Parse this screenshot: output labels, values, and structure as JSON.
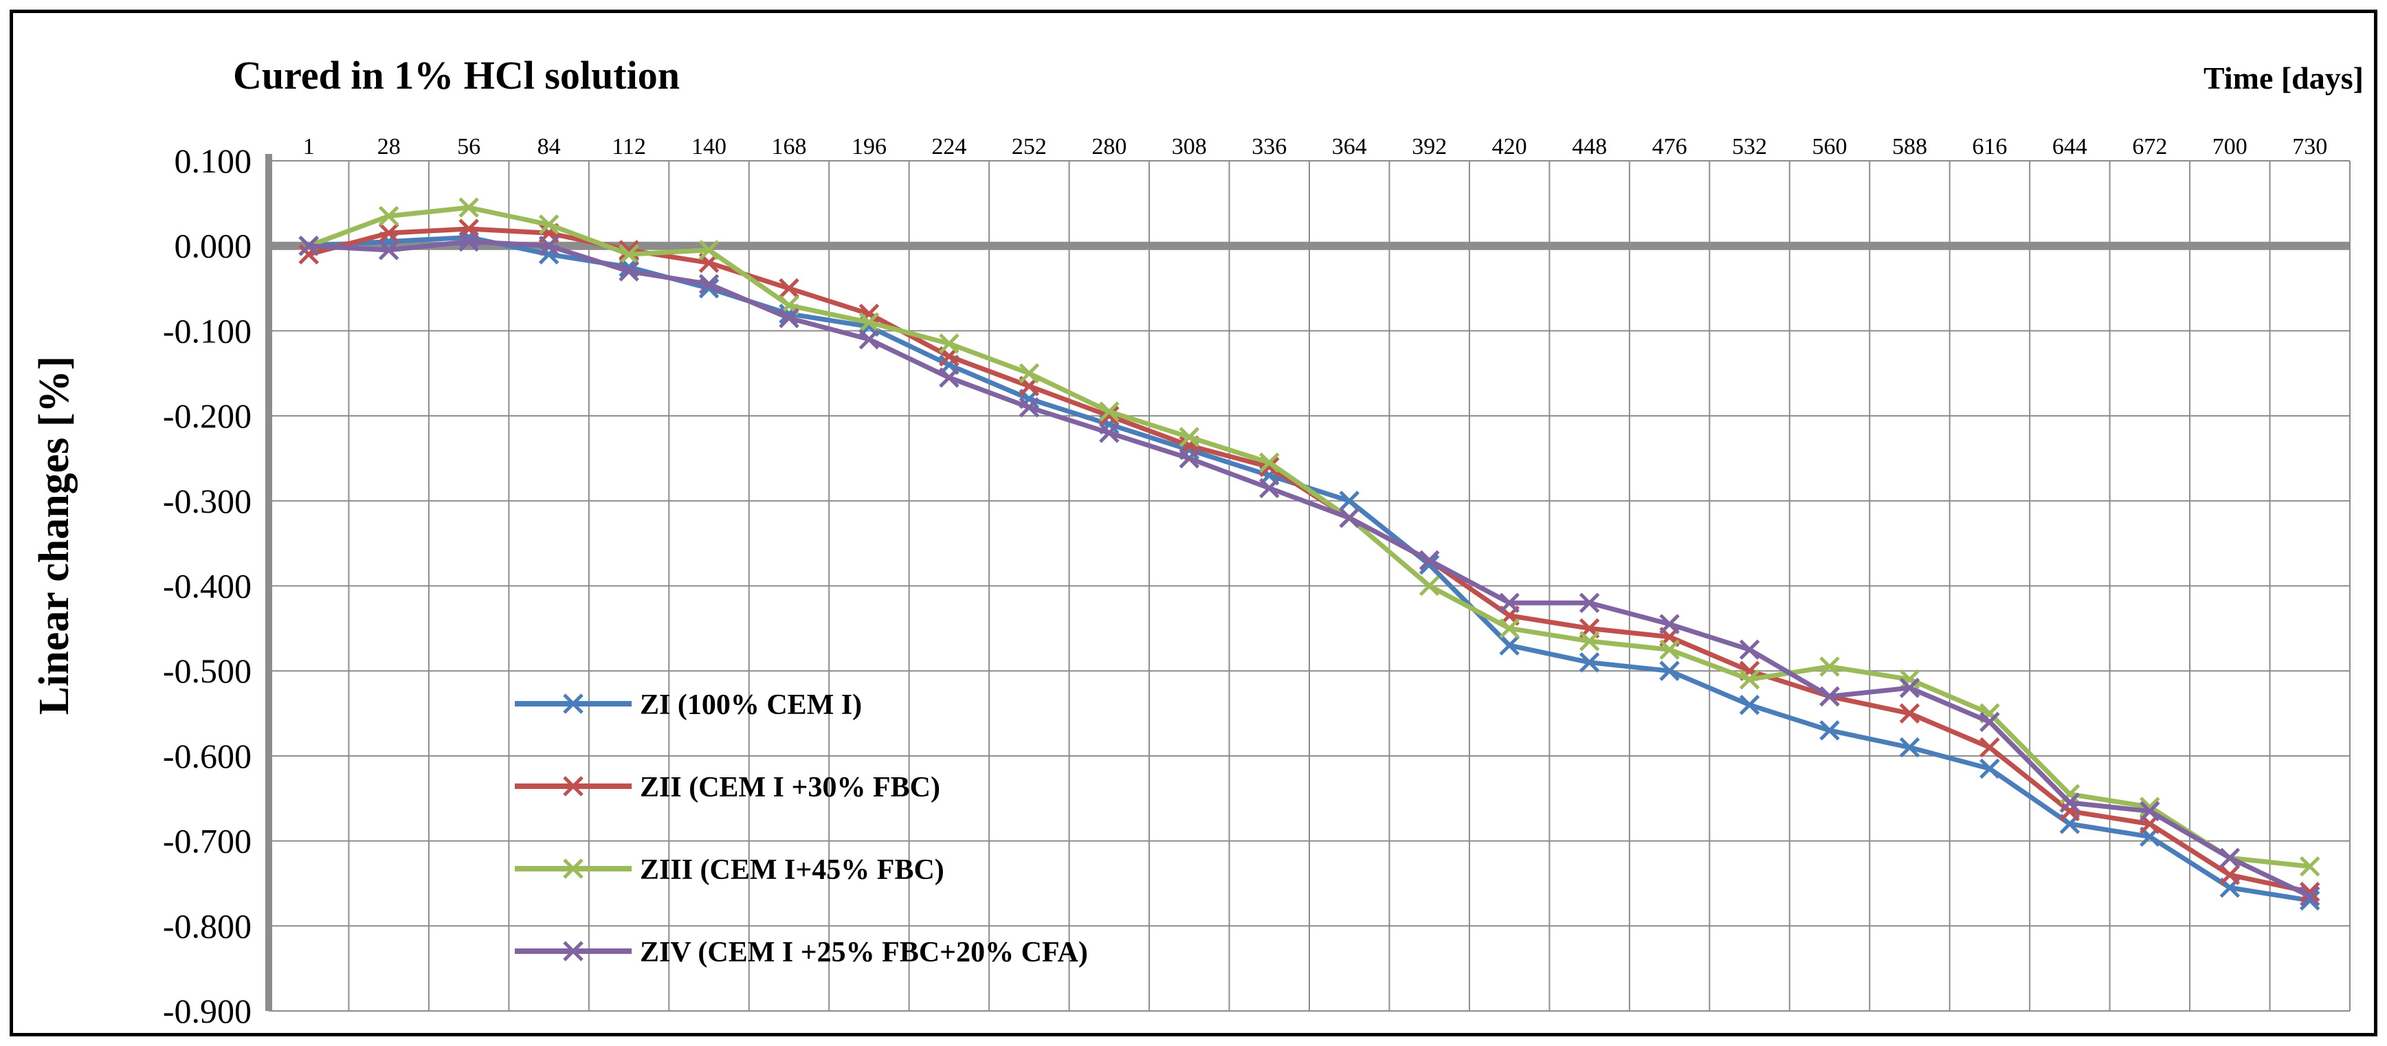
{
  "chart_data": {
    "type": "line",
    "title": "Cured in 1% HCl solution",
    "xlabel": "Time [days]",
    "ylabel": "Linear changes [%]",
    "categories": [
      "1",
      "28",
      "56",
      "84",
      "112",
      "140",
      "168",
      "196",
      "224",
      "252",
      "280",
      "308",
      "336",
      "364",
      "392",
      "420",
      "448",
      "476",
      "532",
      "560",
      "588",
      "616",
      "644",
      "672",
      "700",
      "730"
    ],
    "ylim": [
      -0.9,
      0.1
    ],
    "y_ticks": [
      "0.100",
      "0.000",
      "-0.100",
      "-0.200",
      "-0.300",
      "-0.400",
      "-0.500",
      "-0.600",
      "-0.700",
      "-0.800",
      "-0.900"
    ],
    "y_tick_values": [
      0.1,
      0.0,
      -0.1,
      -0.2,
      -0.3,
      -0.4,
      -0.5,
      -0.6,
      -0.7,
      -0.8,
      -0.9
    ],
    "grid": true,
    "legend_position": "bottom-left",
    "series": [
      {
        "name": "ZI (100% CEM I)",
        "color": "#4a7ebb",
        "values": [
          0.0,
          0.005,
          0.01,
          -0.01,
          -0.025,
          -0.05,
          -0.08,
          -0.095,
          -0.14,
          -0.18,
          -0.21,
          -0.24,
          -0.27,
          -0.3,
          -0.375,
          -0.47,
          -0.49,
          -0.5,
          -0.54,
          -0.57,
          -0.59,
          -0.615,
          -0.68,
          -0.695,
          -0.755,
          -0.77
        ]
      },
      {
        "name": "ZII (CEM I +30% FBC)",
        "color": "#c0504d",
        "values": [
          -0.01,
          0.015,
          0.02,
          0.015,
          -0.005,
          -0.02,
          -0.05,
          -0.08,
          -0.13,
          -0.165,
          -0.2,
          -0.235,
          -0.26,
          -0.32,
          -0.37,
          -0.435,
          -0.45,
          -0.46,
          -0.5,
          -0.53,
          -0.55,
          -0.59,
          -0.665,
          -0.68,
          -0.74,
          -0.76
        ]
      },
      {
        "name": "ZIII (CEM I+45% FBC)",
        "color": "#9bbb59",
        "values": [
          0.0,
          0.035,
          0.045,
          0.025,
          -0.01,
          -0.005,
          -0.07,
          -0.09,
          -0.115,
          -0.15,
          -0.195,
          -0.225,
          -0.255,
          -0.32,
          -0.4,
          -0.45,
          -0.465,
          -0.475,
          -0.51,
          -0.495,
          -0.51,
          -0.55,
          -0.645,
          -0.66,
          -0.72,
          -0.73
        ]
      },
      {
        "name": "ZIV (CEM I +25% FBC+20% CFA)",
        "color": "#8064a2",
        "values": [
          0.0,
          -0.005,
          0.005,
          0.0,
          -0.03,
          -0.045,
          -0.085,
          -0.11,
          -0.155,
          -0.19,
          -0.22,
          -0.25,
          -0.285,
          -0.32,
          -0.37,
          -0.42,
          -0.42,
          -0.445,
          -0.475,
          -0.53,
          -0.52,
          -0.56,
          -0.655,
          -0.665,
          -0.72,
          -0.765
        ]
      }
    ]
  }
}
